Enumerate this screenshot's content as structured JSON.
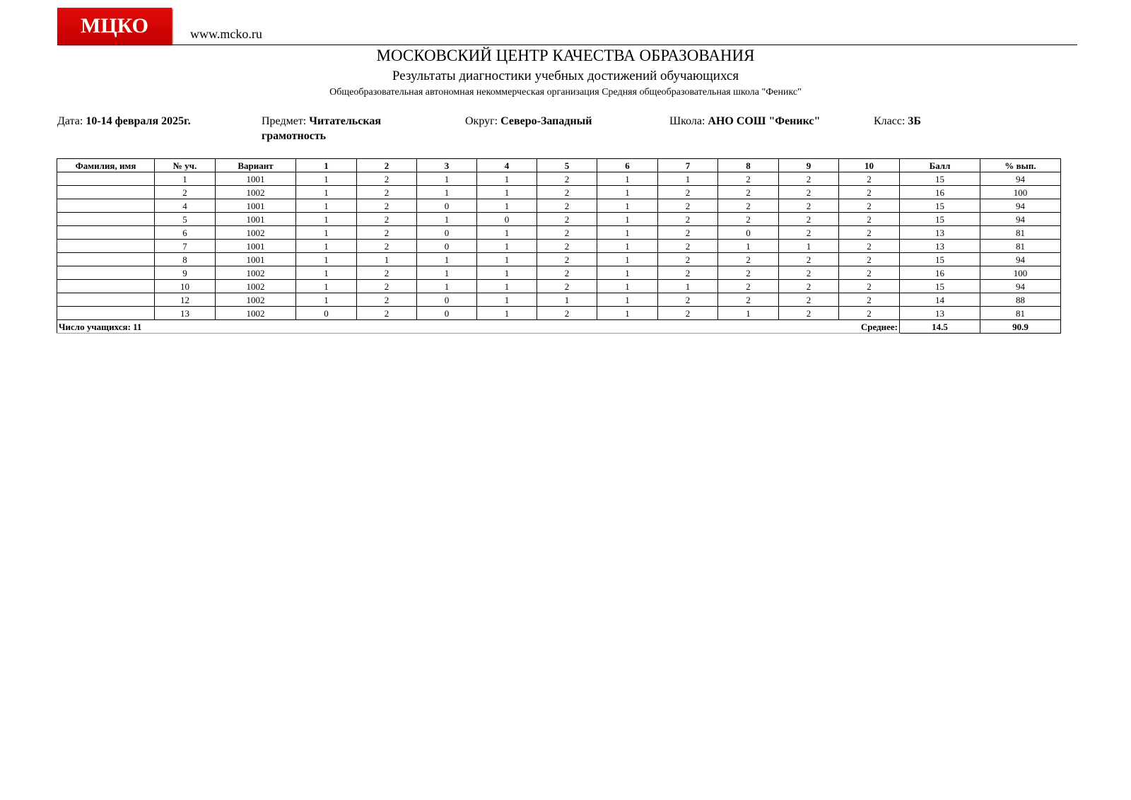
{
  "header": {
    "logo_text": "МЦКО",
    "url": "www.mcko.ru",
    "title": "МОСКОВСКИЙ ЦЕНТР КАЧЕСТВА ОБРАЗОВАНИЯ",
    "subtitle": "Результаты диагностики учебных достижений обучающихся",
    "organization": "Общеобразовательная автономная некоммерческая организация Средняя общеобразовательная школа \"Феникс\"",
    "brand_color": "#d40000"
  },
  "meta": {
    "date_label": "Дата:",
    "date_value": "10-14 февраля 2025г.",
    "subject_label": "Предмет:",
    "subject_value": "Читательская грамотность",
    "district_label": "Округ:",
    "district_value": "Северо-Западный",
    "school_label": "Школа:",
    "school_value": "АНО СОШ \"Феникс\"",
    "class_label": "Класс:",
    "class_value": "3Б"
  },
  "table": {
    "columns": [
      "Фамилия, имя",
      "№ уч.",
      "Вариант",
      "1",
      "2",
      "3",
      "4",
      "5",
      "6",
      "7",
      "8",
      "9",
      "10",
      "Балл",
      "% вып."
    ],
    "rows": [
      [
        "",
        "1",
        "1001",
        "1",
        "2",
        "1",
        "1",
        "2",
        "1",
        "1",
        "2",
        "2",
        "2",
        "15",
        "94"
      ],
      [
        "",
        "2",
        "1002",
        "1",
        "2",
        "1",
        "1",
        "2",
        "1",
        "2",
        "2",
        "2",
        "2",
        "16",
        "100"
      ],
      [
        "",
        "4",
        "1001",
        "1",
        "2",
        "0",
        "1",
        "2",
        "1",
        "2",
        "2",
        "2",
        "2",
        "15",
        "94"
      ],
      [
        "",
        "5",
        "1001",
        "1",
        "2",
        "1",
        "0",
        "2",
        "1",
        "2",
        "2",
        "2",
        "2",
        "15",
        "94"
      ],
      [
        "",
        "6",
        "1002",
        "1",
        "2",
        "0",
        "1",
        "2",
        "1",
        "2",
        "0",
        "2",
        "2",
        "13",
        "81"
      ],
      [
        "",
        "7",
        "1001",
        "1",
        "2",
        "0",
        "1",
        "2",
        "1",
        "2",
        "1",
        "1",
        "2",
        "13",
        "81"
      ],
      [
        "",
        "8",
        "1001",
        "1",
        "1",
        "1",
        "1",
        "2",
        "1",
        "2",
        "2",
        "2",
        "2",
        "15",
        "94"
      ],
      [
        "",
        "9",
        "1002",
        "1",
        "2",
        "1",
        "1",
        "2",
        "1",
        "2",
        "2",
        "2",
        "2",
        "16",
        "100"
      ],
      [
        "",
        "10",
        "1002",
        "1",
        "2",
        "1",
        "1",
        "2",
        "1",
        "1",
        "2",
        "2",
        "2",
        "15",
        "94"
      ],
      [
        "",
        "12",
        "1002",
        "1",
        "2",
        "0",
        "1",
        "1",
        "1",
        "2",
        "2",
        "2",
        "2",
        "14",
        "88"
      ],
      [
        "",
        "13",
        "1002",
        "0",
        "2",
        "0",
        "1",
        "2",
        "1",
        "2",
        "1",
        "2",
        "2",
        "13",
        "81"
      ]
    ],
    "footer": {
      "count_text": "Число учащихся: 11",
      "average_label": "Среднее:",
      "average_score": "14.5",
      "average_percent": "90.9"
    }
  }
}
